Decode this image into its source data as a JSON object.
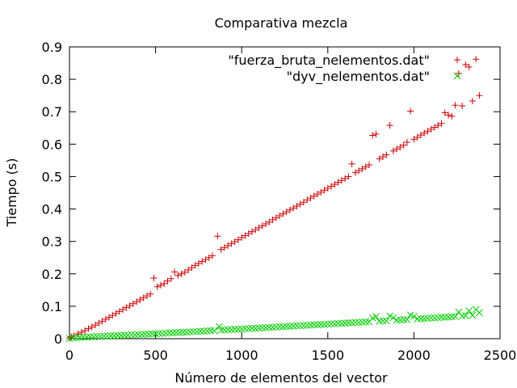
{
  "chart_data": {
    "type": "scatter",
    "title": "Comparativa mezcla",
    "xlabel": "Número de elementos del vector",
    "ylabel": "Tiempo (s)",
    "xlim": [
      0,
      2500
    ],
    "ylim": [
      0,
      0.9
    ],
    "xticks": [
      0,
      500,
      1000,
      1500,
      2000,
      2500
    ],
    "yticks": [
      0,
      0.1,
      0.2,
      0.3,
      0.4,
      0.5,
      0.6,
      0.7,
      0.8,
      0.9
    ],
    "grid": false,
    "legend_position": "top-right",
    "series": [
      {
        "name": "\"fuerza_bruta_nelementos.dat\"",
        "marker": "plus",
        "color": "#cc0000",
        "points": [
          [
            0,
            0.002
          ],
          [
            10,
            0.006
          ],
          [
            25,
            0.01
          ],
          [
            50,
            0.015
          ],
          [
            70,
            0.02
          ],
          [
            90,
            0.025
          ],
          [
            110,
            0.031
          ],
          [
            130,
            0.036
          ],
          [
            150,
            0.042
          ],
          [
            170,
            0.048
          ],
          [
            190,
            0.054
          ],
          [
            210,
            0.06
          ],
          [
            230,
            0.066
          ],
          [
            250,
            0.072
          ],
          [
            270,
            0.078
          ],
          [
            290,
            0.084
          ],
          [
            310,
            0.09
          ],
          [
            330,
            0.096
          ],
          [
            350,
            0.102
          ],
          [
            370,
            0.108
          ],
          [
            390,
            0.114
          ],
          [
            410,
            0.12
          ],
          [
            430,
            0.126
          ],
          [
            450,
            0.132
          ],
          [
            470,
            0.138
          ],
          [
            490,
            0.187
          ],
          [
            510,
            0.16
          ],
          [
            530,
            0.165
          ],
          [
            550,
            0.17
          ],
          [
            570,
            0.178
          ],
          [
            590,
            0.185
          ],
          [
            610,
            0.206
          ],
          [
            630,
            0.195
          ],
          [
            650,
            0.2
          ],
          [
            670,
            0.205
          ],
          [
            690,
            0.212
          ],
          [
            710,
            0.219
          ],
          [
            730,
            0.226
          ],
          [
            750,
            0.232
          ],
          [
            770,
            0.238
          ],
          [
            790,
            0.244
          ],
          [
            810,
            0.25
          ],
          [
            830,
            0.256
          ],
          [
            860,
            0.316
          ],
          [
            880,
            0.275
          ],
          [
            900,
            0.281
          ],
          [
            920,
            0.287
          ],
          [
            940,
            0.293
          ],
          [
            960,
            0.299
          ],
          [
            980,
            0.305
          ],
          [
            1000,
            0.312
          ],
          [
            1020,
            0.318
          ],
          [
            1040,
            0.324
          ],
          [
            1060,
            0.33
          ],
          [
            1080,
            0.336
          ],
          [
            1100,
            0.342
          ],
          [
            1120,
            0.348
          ],
          [
            1140,
            0.354
          ],
          [
            1160,
            0.36
          ],
          [
            1180,
            0.367
          ],
          [
            1200,
            0.373
          ],
          [
            1220,
            0.379
          ],
          [
            1240,
            0.385
          ],
          [
            1260,
            0.391
          ],
          [
            1280,
            0.397
          ],
          [
            1300,
            0.403
          ],
          [
            1320,
            0.409
          ],
          [
            1340,
            0.415
          ],
          [
            1360,
            0.421
          ],
          [
            1380,
            0.428
          ],
          [
            1400,
            0.434
          ],
          [
            1420,
            0.44
          ],
          [
            1440,
            0.446
          ],
          [
            1460,
            0.452
          ],
          [
            1480,
            0.458
          ],
          [
            1500,
            0.464
          ],
          [
            1520,
            0.47
          ],
          [
            1540,
            0.476
          ],
          [
            1560,
            0.482
          ],
          [
            1580,
            0.488
          ],
          [
            1600,
            0.494
          ],
          [
            1620,
            0.5
          ],
          [
            1640,
            0.539
          ],
          [
            1660,
            0.512
          ],
          [
            1680,
            0.518
          ],
          [
            1700,
            0.524
          ],
          [
            1720,
            0.53
          ],
          [
            1740,
            0.536
          ],
          [
            1760,
            0.627
          ],
          [
            1780,
            0.631
          ],
          [
            1800,
            0.555
          ],
          [
            1820,
            0.561
          ],
          [
            1840,
            0.567
          ],
          [
            1860,
            0.658
          ],
          [
            1880,
            0.579
          ],
          [
            1900,
            0.585
          ],
          [
            1920,
            0.591
          ],
          [
            1940,
            0.597
          ],
          [
            1960,
            0.606
          ],
          [
            1980,
            0.702
          ],
          [
            2000,
            0.615
          ],
          [
            2020,
            0.621
          ],
          [
            2040,
            0.628
          ],
          [
            2060,
            0.634
          ],
          [
            2080,
            0.64
          ],
          [
            2100,
            0.646
          ],
          [
            2120,
            0.652
          ],
          [
            2140,
            0.658
          ],
          [
            2160,
            0.664
          ],
          [
            2180,
            0.697
          ],
          [
            2200,
            0.69
          ],
          [
            2220,
            0.686
          ],
          [
            2240,
            0.72
          ],
          [
            2260,
            0.818
          ],
          [
            2280,
            0.718
          ],
          [
            2300,
            0.845
          ],
          [
            2320,
            0.838
          ],
          [
            2340,
            0.733
          ],
          [
            2360,
            0.862
          ],
          [
            2380,
            0.75
          ]
        ]
      },
      {
        "name": "\"dyv_nelementos.dat\"",
        "marker": "x",
        "color": "#00cc00",
        "points": [
          [
            0,
            0.001
          ],
          [
            20,
            0.002
          ],
          [
            40,
            0.003
          ],
          [
            60,
            0.004
          ],
          [
            80,
            0.005
          ],
          [
            100,
            0.005
          ],
          [
            120,
            0.006
          ],
          [
            140,
            0.006
          ],
          [
            160,
            0.007
          ],
          [
            180,
            0.007
          ],
          [
            200,
            0.008
          ],
          [
            220,
            0.008
          ],
          [
            240,
            0.009
          ],
          [
            260,
            0.009
          ],
          [
            280,
            0.01
          ],
          [
            300,
            0.01
          ],
          [
            320,
            0.011
          ],
          [
            340,
            0.011
          ],
          [
            360,
            0.012
          ],
          [
            380,
            0.012
          ],
          [
            400,
            0.013
          ],
          [
            420,
            0.013
          ],
          [
            440,
            0.014
          ],
          [
            460,
            0.014
          ],
          [
            480,
            0.015
          ],
          [
            500,
            0.015
          ],
          [
            520,
            0.016
          ],
          [
            540,
            0.016
          ],
          [
            560,
            0.017
          ],
          [
            580,
            0.018
          ],
          [
            600,
            0.018
          ],
          [
            620,
            0.019
          ],
          [
            640,
            0.019
          ],
          [
            660,
            0.02
          ],
          [
            680,
            0.02
          ],
          [
            700,
            0.021
          ],
          [
            720,
            0.022
          ],
          [
            740,
            0.022
          ],
          [
            760,
            0.023
          ],
          [
            780,
            0.023
          ],
          [
            800,
            0.024
          ],
          [
            820,
            0.025
          ],
          [
            840,
            0.025
          ],
          [
            870,
            0.037
          ],
          [
            880,
            0.026
          ],
          [
            900,
            0.027
          ],
          [
            920,
            0.028
          ],
          [
            940,
            0.028
          ],
          [
            960,
            0.029
          ],
          [
            980,
            0.029
          ],
          [
            1000,
            0.03
          ],
          [
            1020,
            0.031
          ],
          [
            1040,
            0.031
          ],
          [
            1060,
            0.032
          ],
          [
            1080,
            0.032
          ],
          [
            1100,
            0.033
          ],
          [
            1120,
            0.034
          ],
          [
            1140,
            0.034
          ],
          [
            1160,
            0.035
          ],
          [
            1180,
            0.035
          ],
          [
            1200,
            0.036
          ],
          [
            1220,
            0.037
          ],
          [
            1240,
            0.037
          ],
          [
            1260,
            0.038
          ],
          [
            1280,
            0.038
          ],
          [
            1300,
            0.039
          ],
          [
            1320,
            0.04
          ],
          [
            1340,
            0.04
          ],
          [
            1360,
            0.041
          ],
          [
            1380,
            0.041
          ],
          [
            1400,
            0.042
          ],
          [
            1420,
            0.043
          ],
          [
            1440,
            0.043
          ],
          [
            1460,
            0.044
          ],
          [
            1480,
            0.044
          ],
          [
            1500,
            0.045
          ],
          [
            1520,
            0.046
          ],
          [
            1540,
            0.046
          ],
          [
            1560,
            0.047
          ],
          [
            1580,
            0.047
          ],
          [
            1600,
            0.048
          ],
          [
            1620,
            0.049
          ],
          [
            1640,
            0.049
          ],
          [
            1660,
            0.05
          ],
          [
            1680,
            0.05
          ],
          [
            1700,
            0.051
          ],
          [
            1720,
            0.052
          ],
          [
            1740,
            0.052
          ],
          [
            1760,
            0.064
          ],
          [
            1780,
            0.068
          ],
          [
            1800,
            0.054
          ],
          [
            1820,
            0.055
          ],
          [
            1840,
            0.055
          ],
          [
            1860,
            0.07
          ],
          [
            1880,
            0.065
          ],
          [
            1900,
            0.057
          ],
          [
            1920,
            0.058
          ],
          [
            1940,
            0.059
          ],
          [
            1960,
            0.059
          ],
          [
            1980,
            0.073
          ],
          [
            2000,
            0.069
          ],
          [
            2020,
            0.061
          ],
          [
            2040,
            0.062
          ],
          [
            2060,
            0.062
          ],
          [
            2080,
            0.063
          ],
          [
            2100,
            0.064
          ],
          [
            2120,
            0.064
          ],
          [
            2140,
            0.065
          ],
          [
            2160,
            0.066
          ],
          [
            2180,
            0.066
          ],
          [
            2200,
            0.067
          ],
          [
            2220,
            0.068
          ],
          [
            2240,
            0.068
          ],
          [
            2260,
            0.082
          ],
          [
            2280,
            0.07
          ],
          [
            2300,
            0.071
          ],
          [
            2320,
            0.086
          ],
          [
            2340,
            0.072
          ],
          [
            2360,
            0.09
          ],
          [
            2380,
            0.08
          ]
        ]
      }
    ]
  }
}
